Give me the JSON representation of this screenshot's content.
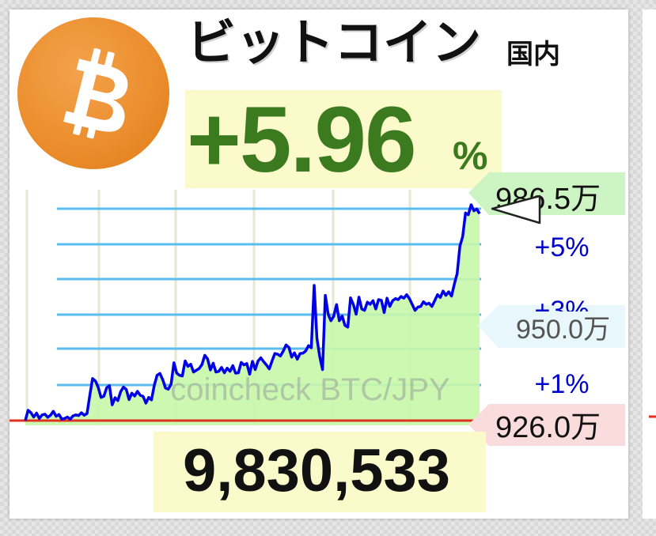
{
  "header": {
    "title": "ビットコイン",
    "subtitle": "国内",
    "change": "+5.96",
    "change_unit": "%"
  },
  "price": "9,830,533",
  "colors": {
    "line": "#0000e6",
    "fill": "#c8f7a8",
    "grid": "#5bbcf0",
    "baseline": "#e03020",
    "change_text": "#3b7a1f",
    "logo": "#eb8d2c"
  },
  "icons": {
    "logo": "bitcoin-icon",
    "marker": "triangle-pointer-icon"
  },
  "chart_data": {
    "type": "area",
    "watermark": "coincheck BTC/JPY",
    "y_unit": "万",
    "ylim": [
      925.0,
      990.0
    ],
    "grid_percent_labels": [
      "+5%",
      "+3%",
      "+1%"
    ],
    "price_labels": {
      "high": {
        "text": "986.5万",
        "value": 986.5
      },
      "mid": {
        "text": "950.0万",
        "value": 950.0
      },
      "base": {
        "text": "926.0万",
        "value": 926.0
      }
    },
    "series": [
      {
        "values": [
          926.0,
          928.9,
          928.2,
          927.0,
          928.1,
          926.6,
          927.6,
          927.8,
          926.9,
          927.5,
          928.6,
          927.2,
          927.7,
          926.4,
          926.6,
          927.0,
          926.4,
          927.3,
          927.6,
          927.4,
          928.2,
          927.5,
          928.0,
          933.1,
          937.8,
          937.1,
          935.3,
          932.5,
          932.8,
          935.2,
          935.8,
          930.4,
          932.4,
          931.6,
          934.1,
          935.4,
          934.7,
          931.9,
          933.7,
          932.9,
          934.2,
          933.1,
          932.8,
          930.9,
          932.5,
          931.8,
          935.9,
          938.7,
          939.2,
          937.5,
          935.1,
          934.8,
          936.2,
          942.2,
          939.3,
          938.7,
          938.5,
          942.7,
          941.2,
          941.8,
          939.6,
          940.1,
          940.6,
          941.7,
          944.3,
          943.3,
          940.2,
          942.1,
          939.6,
          939.8,
          940.9,
          939.4,
          940.7,
          939.8,
          941.4,
          939.3,
          939.4,
          942.3,
          941.6,
          942.0,
          939.0,
          942.6,
          940.3,
          942.7,
          943.6,
          942.5,
          941.6,
          940.5,
          942.7,
          944.8,
          944.6,
          944.1,
          945.5,
          947.2,
          946.5,
          943.8,
          945.0,
          943.2,
          944.8,
          944.9,
          945.5,
          947.0,
          946.4,
          963.9,
          949.1,
          944.0,
          940.3,
          961.1,
          955.8,
          954.0,
          955.3,
          958.5,
          954.0,
          955.3,
          952.7,
          952.2,
          960.4,
          958.5,
          955.8,
          960.6,
          957.3,
          956.9,
          959.2,
          958.6,
          959.6,
          957.3,
          959.9,
          959.7,
          956.3,
          960.3,
          958.0,
          959.6,
          960.2,
          959.9,
          960.8,
          960.3,
          961.3,
          960.2,
          958.5,
          956.9,
          957.8,
          958.0,
          959.3,
          958.6,
          958.9,
          958.0,
          959.6,
          961.3,
          960.5,
          962.3,
          961.1,
          962.1,
          960.9,
          964.2,
          967.2,
          974.9,
          977.6,
          984.2,
          983.7,
          986.5,
          984.8,
          985.3,
          984.0
        ]
      }
    ]
  }
}
